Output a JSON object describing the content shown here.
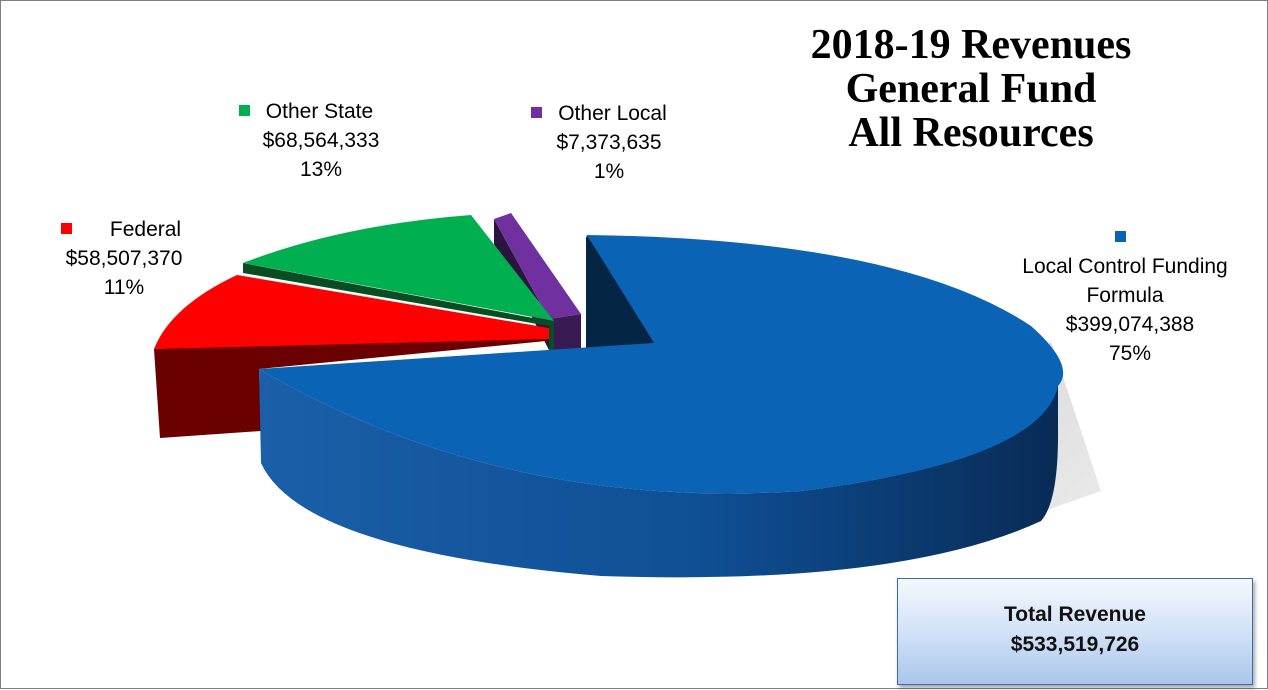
{
  "chart_data": {
    "type": "pie",
    "title": [
      "2018-19 Revenues",
      "General Fund",
      "All Resources"
    ],
    "slices": [
      {
        "name": "Local Control Funding Formula",
        "amount": "$399,074,388",
        "value": 399074388,
        "percent": "75%",
        "color": "#0a63b5"
      },
      {
        "name": "Federal",
        "amount": "$58,507,370",
        "value": 58507370,
        "percent": "11%",
        "color": "#ff0000"
      },
      {
        "name": "Other State",
        "amount": "$68,564,333",
        "value": 68564333,
        "percent": "13%",
        "color": "#00b050"
      },
      {
        "name": "Other Local",
        "amount": "$7,373,635",
        "value": 7373635,
        "percent": "1%",
        "color": "#7030a0"
      }
    ],
    "total": {
      "label": "Total Revenue",
      "amount": "$533,519,726"
    }
  }
}
